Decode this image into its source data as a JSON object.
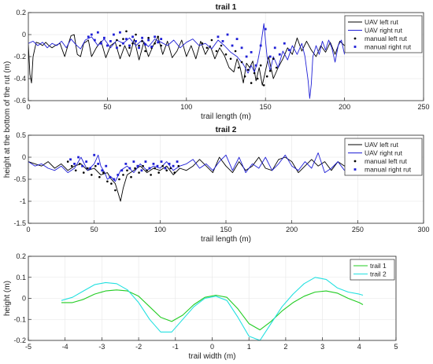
{
  "shared_ylabel": "height at the bottom of the rut (m)",
  "chart_data": [
    {
      "type": "line",
      "title": "trail 1",
      "xlabel": "trail length (m)",
      "ylabel": "",
      "xlim": [
        0,
        250
      ],
      "ylim": [
        -0.6,
        0.2
      ],
      "xticks": [
        0,
        50,
        100,
        150,
        200,
        250
      ],
      "yticks": [
        -0.6,
        -0.4,
        -0.2,
        0,
        0.2
      ],
      "xtick_labels": [
        "0",
        "50",
        "100",
        "150",
        "200",
        "250"
      ],
      "ytick_labels": [
        "-0.6",
        "-0.4",
        "-0.2",
        "0",
        "0.2"
      ],
      "grid": true,
      "legend_position": "top-right",
      "series": [
        {
          "name": "UAV left rut",
          "kind": "line",
          "color": "#000000",
          "x": [
            0,
            1,
            2,
            3,
            5,
            7,
            9,
            11,
            13,
            15,
            17,
            20,
            23,
            25,
            27,
            29,
            31,
            33,
            35,
            38,
            40,
            43,
            46,
            49,
            52,
            55,
            58,
            61,
            64,
            67,
            70,
            73,
            76,
            79,
            82,
            85,
            88,
            91,
            94,
            97,
            100,
            103,
            106,
            109,
            112,
            115,
            118,
            121,
            124,
            127,
            130,
            132,
            134,
            136,
            138,
            140,
            142,
            144,
            146,
            148,
            150,
            152,
            155,
            158,
            161,
            164,
            167,
            170,
            173,
            176,
            179,
            182,
            185,
            188,
            191,
            194,
            197,
            200
          ],
          "y": [
            -0.09,
            -0.36,
            -0.44,
            -0.2,
            -0.07,
            -0.08,
            -0.1,
            -0.07,
            -0.1,
            -0.12,
            -0.1,
            -0.08,
            -0.2,
            -0.1,
            -0.01,
            0.0,
            -0.18,
            -0.2,
            -0.08,
            -0.05,
            -0.2,
            -0.12,
            -0.06,
            -0.21,
            -0.1,
            -0.07,
            -0.22,
            -0.1,
            -0.2,
            -0.04,
            -0.23,
            -0.07,
            -0.2,
            -0.1,
            -0.02,
            -0.18,
            -0.06,
            -0.21,
            -0.15,
            -0.05,
            -0.2,
            -0.1,
            -0.22,
            -0.06,
            -0.18,
            -0.1,
            -0.22,
            -0.12,
            -0.19,
            -0.3,
            -0.34,
            -0.22,
            -0.3,
            -0.44,
            -0.26,
            -0.3,
            -0.24,
            -0.42,
            -0.3,
            -0.46,
            -0.33,
            -0.2,
            -0.4,
            -0.3,
            -0.22,
            -0.12,
            -0.18,
            -0.03,
            -0.15,
            -0.06,
            -0.14,
            -0.2,
            -0.1,
            -0.16,
            -0.07,
            -0.18,
            -0.06,
            -0.1
          ]
        },
        {
          "name": "UAV right rut",
          "kind": "line",
          "color": "#1f1fd6",
          "x": [
            0,
            3,
            6,
            9,
            12,
            15,
            18,
            21,
            24,
            27,
            30,
            33,
            36,
            40,
            44,
            48,
            52,
            56,
            60,
            64,
            68,
            72,
            76,
            80,
            84,
            88,
            92,
            96,
            100,
            104,
            108,
            112,
            116,
            120,
            124,
            128,
            132,
            136,
            139,
            141,
            143,
            145,
            147,
            149,
            151,
            153,
            155,
            158,
            161,
            164,
            167,
            170,
            173,
            175,
            177,
            178,
            179,
            180,
            182,
            184,
            186,
            188,
            190,
            192,
            194,
            196,
            198,
            200
          ],
          "y": [
            -0.08,
            -0.06,
            -0.1,
            -0.07,
            -0.12,
            -0.08,
            -0.1,
            -0.06,
            -0.12,
            -0.04,
            -0.09,
            -0.13,
            -0.05,
            -0.02,
            -0.1,
            -0.04,
            -0.12,
            -0.05,
            -0.08,
            -0.03,
            -0.1,
            -0.05,
            -0.11,
            -0.04,
            -0.07,
            -0.1,
            -0.05,
            -0.12,
            -0.07,
            -0.04,
            -0.1,
            -0.08,
            -0.13,
            -0.05,
            -0.1,
            -0.16,
            -0.2,
            -0.27,
            -0.35,
            -0.28,
            -0.34,
            -0.25,
            -0.1,
            0.1,
            -0.2,
            -0.33,
            -0.2,
            -0.3,
            -0.15,
            -0.23,
            -0.1,
            -0.18,
            -0.08,
            -0.2,
            -0.42,
            -0.58,
            -0.45,
            -0.2,
            -0.1,
            -0.18,
            -0.06,
            -0.14,
            -0.05,
            -0.12,
            -0.25,
            -0.1,
            -0.05,
            -0.18
          ]
        },
        {
          "name": "manual left rut",
          "kind": "scatter",
          "marker": "dot",
          "color": "#000000",
          "x": [
            56,
            58,
            60,
            62,
            64,
            66,
            68,
            70,
            72,
            74,
            76,
            78,
            80,
            82,
            84,
            110,
            113,
            116,
            119,
            122,
            125,
            128,
            131,
            133,
            135,
            137,
            139,
            141,
            143,
            145,
            147,
            149,
            151,
            153,
            155,
            157
          ],
          "y": [
            -0.05,
            -0.1,
            -0.04,
            0.03,
            -0.12,
            -0.08,
            0.0,
            -0.1,
            -0.06,
            -0.15,
            -0.03,
            -0.12,
            -0.08,
            -0.02,
            -0.1,
            -0.08,
            -0.12,
            -0.05,
            -0.15,
            -0.1,
            -0.18,
            -0.22,
            -0.15,
            -0.3,
            -0.25,
            -0.38,
            -0.32,
            -0.44,
            -0.35,
            -0.4,
            -0.28,
            -0.46,
            -0.38,
            -0.33,
            -0.22,
            -0.3
          ]
        },
        {
          "name": "manual right rut",
          "kind": "scatter",
          "marker": "square",
          "color": "#1f1fd6",
          "x": [
            38,
            40,
            42,
            44,
            46,
            48,
            50,
            52,
            54,
            56,
            58,
            60,
            62,
            64,
            66,
            68,
            70,
            72,
            74,
            76,
            78,
            80,
            82,
            84,
            120,
            123,
            126,
            129,
            132,
            135,
            138,
            141,
            144,
            147,
            150,
            153,
            156,
            159,
            162,
            165
          ],
          "y": [
            -0.02,
            0.0,
            -0.05,
            0.02,
            -0.08,
            -0.03,
            -0.1,
            -0.06,
            0.0,
            -0.12,
            0.02,
            -0.08,
            -0.04,
            -0.1,
            -0.02,
            -0.06,
            -0.12,
            -0.03,
            -0.09,
            -0.05,
            -0.11,
            -0.02,
            -0.07,
            -0.04,
            -0.02,
            -0.06,
            0.0,
            -0.1,
            -0.04,
            -0.12,
            -0.2,
            -0.16,
            -0.28,
            -0.1,
            0.05,
            -0.2,
            -0.12,
            -0.18,
            -0.08,
            -0.14
          ]
        }
      ]
    },
    {
      "type": "line",
      "title": "trail 2",
      "xlabel": "trail length (m)",
      "ylabel": "",
      "xlim": [
        0,
        300
      ],
      "ylim": [
        -1.5,
        0.5
      ],
      "xticks": [
        0,
        50,
        100,
        150,
        200,
        250,
        300
      ],
      "yticks": [
        -1.5,
        -1,
        -0.5,
        0,
        0.5
      ],
      "xtick_labels": [
        "0",
        "50",
        "100",
        "150",
        "200",
        "250",
        "300"
      ],
      "ytick_labels": [
        "-1.5",
        "-1",
        "-0.5",
        "0",
        "0.5"
      ],
      "grid": true,
      "legend_position": "top-right",
      "series": [
        {
          "name": "UAV left rut",
          "kind": "line",
          "color": "#000000",
          "x": [
            0,
            5,
            10,
            15,
            20,
            25,
            30,
            35,
            40,
            45,
            50,
            55,
            60,
            63,
            66,
            68,
            70,
            72,
            75,
            80,
            85,
            90,
            95,
            100,
            105,
            110,
            115,
            120,
            125,
            130,
            135,
            140,
            145,
            150,
            155,
            160,
            165,
            170,
            175,
            180,
            185,
            190,
            195,
            200,
            205,
            210,
            215,
            220,
            225,
            230,
            235,
            240,
            244
          ],
          "y": [
            -0.1,
            -0.15,
            -0.2,
            -0.1,
            -0.25,
            -0.15,
            -0.3,
            -0.2,
            -0.15,
            -0.3,
            -0.25,
            -0.4,
            -0.35,
            -0.5,
            -0.6,
            -0.8,
            -1.0,
            -0.7,
            -0.4,
            -0.3,
            -0.2,
            -0.35,
            -0.25,
            -0.3,
            -0.2,
            -0.4,
            -0.25,
            -0.3,
            -0.2,
            -0.05,
            -0.2,
            -0.35,
            0.0,
            -0.2,
            -0.35,
            -0.1,
            -0.3,
            -0.2,
            0.0,
            -0.25,
            -0.3,
            -0.05,
            0.0,
            -0.1,
            -0.35,
            -0.2,
            -0.05,
            -0.2,
            -0.1,
            -0.3,
            -0.1,
            -0.2,
            -0.1
          ]
        },
        {
          "name": "UAV right rut",
          "kind": "line",
          "color": "#1f1fd6",
          "x": [
            0,
            5,
            10,
            15,
            20,
            25,
            30,
            35,
            40,
            45,
            50,
            53,
            55,
            58,
            60,
            63,
            66,
            70,
            75,
            80,
            85,
            90,
            95,
            100,
            105,
            110,
            115,
            120,
            125,
            130,
            135,
            140,
            145,
            150,
            155,
            160,
            165,
            170,
            175,
            180,
            185,
            190,
            195,
            200,
            205,
            210,
            215,
            220,
            225,
            230,
            235,
            240
          ],
          "y": [
            -0.1,
            -0.2,
            -0.15,
            -0.25,
            -0.3,
            -0.2,
            -0.35,
            -0.25,
            0.0,
            -0.3,
            -0.15,
            0.05,
            -0.2,
            -0.35,
            -0.5,
            -0.45,
            -0.55,
            -0.3,
            -0.2,
            -0.35,
            -0.15,
            -0.3,
            -0.2,
            -0.25,
            -0.1,
            -0.3,
            -0.2,
            -0.15,
            -0.05,
            -0.25,
            -0.15,
            -0.3,
            -0.1,
            0.05,
            -0.3,
            0.0,
            -0.35,
            -0.15,
            -0.25,
            0.0,
            -0.3,
            -0.15,
            0.05,
            -0.2,
            -0.3,
            -0.1,
            -0.25,
            0.1,
            -0.35,
            -0.25,
            -0.1,
            -0.3
          ]
        },
        {
          "name": "manual left rut",
          "kind": "scatter",
          "marker": "dot",
          "color": "#000000",
          "x": [
            30,
            33,
            36,
            39,
            42,
            45,
            48,
            51,
            54,
            57,
            60,
            63,
            66,
            69,
            72,
            75,
            78,
            81,
            84,
            87,
            90,
            93,
            96,
            99,
            102,
            105,
            108,
            111,
            114
          ],
          "y": [
            -0.1,
            -0.2,
            -0.3,
            -0.15,
            -0.35,
            -0.25,
            -0.4,
            -0.2,
            -0.45,
            -0.35,
            -0.55,
            -0.6,
            -0.75,
            -0.5,
            -0.4,
            -0.3,
            -0.45,
            -0.25,
            -0.35,
            -0.2,
            -0.3,
            -0.4,
            -0.25,
            -0.35,
            -0.2,
            -0.3,
            -0.25,
            -0.35,
            -0.2
          ]
        },
        {
          "name": "manual right rut",
          "kind": "scatter",
          "marker": "square",
          "color": "#1f1fd6",
          "x": [
            32,
            35,
            38,
            41,
            44,
            47,
            50,
            53,
            56,
            59,
            62,
            65,
            68,
            71,
            74,
            77,
            80,
            83,
            86,
            89,
            92,
            95,
            98,
            101,
            104,
            107,
            110,
            113
          ],
          "y": [
            -0.05,
            -0.15,
            0.0,
            -0.2,
            -0.1,
            -0.25,
            0.05,
            -0.15,
            -0.3,
            -0.2,
            -0.45,
            -0.5,
            -0.4,
            -0.3,
            -0.15,
            -0.25,
            -0.1,
            -0.2,
            -0.3,
            -0.1,
            -0.25,
            -0.15,
            -0.2,
            -0.1,
            -0.25,
            -0.15,
            -0.2,
            -0.1
          ]
        }
      ]
    },
    {
      "type": "line",
      "title": "",
      "xlabel": "trail width (m)",
      "ylabel": "height (m)",
      "xlim": [
        -5,
        5
      ],
      "ylim": [
        -0.2,
        0.2
      ],
      "xticks": [
        -5,
        -4,
        -3,
        -2,
        -1,
        0,
        1,
        2,
        3,
        4,
        5
      ],
      "yticks": [
        -0.2,
        -0.1,
        0,
        0.1,
        0.2
      ],
      "xtick_labels": [
        "-5",
        "-4",
        "-3",
        "-2",
        "-1",
        "0",
        "1",
        "2",
        "3",
        "4",
        "5"
      ],
      "ytick_labels": [
        "-0.2",
        "-0.1",
        "0",
        "0.1",
        "0.2"
      ],
      "grid": true,
      "legend_position": "top-right",
      "series": [
        {
          "name": "trail 1",
          "kind": "line",
          "color": "#22cc22",
          "x": [
            -4.1,
            -3.8,
            -3.5,
            -3.2,
            -2.9,
            -2.6,
            -2.3,
            -2.0,
            -1.7,
            -1.4,
            -1.1,
            -0.8,
            -0.5,
            -0.2,
            0.1,
            0.4,
            0.7,
            1.0,
            1.3,
            1.6,
            1.9,
            2.2,
            2.5,
            2.8,
            3.1,
            3.4,
            3.7,
            4.0,
            4.1
          ],
          "y": [
            -0.02,
            -0.02,
            -0.005,
            0.02,
            0.035,
            0.04,
            0.035,
            0.01,
            -0.04,
            -0.09,
            -0.11,
            -0.08,
            -0.03,
            0.005,
            0.015,
            0.005,
            -0.05,
            -0.12,
            -0.15,
            -0.11,
            -0.06,
            -0.02,
            0.01,
            0.03,
            0.035,
            0.025,
            0.0,
            -0.02,
            -0.03
          ]
        },
        {
          "name": "trail 2",
          "kind": "line",
          "color": "#22e0e0",
          "x": [
            -4.1,
            -3.8,
            -3.5,
            -3.2,
            -2.9,
            -2.6,
            -2.3,
            -2.0,
            -1.7,
            -1.4,
            -1.1,
            -0.8,
            -0.5,
            -0.2,
            0.1,
            0.4,
            0.7,
            1.0,
            1.3,
            1.6,
            1.9,
            2.2,
            2.5,
            2.8,
            3.1,
            3.4,
            3.7,
            4.0,
            4.1
          ],
          "y": [
            -0.01,
            0.005,
            0.035,
            0.065,
            0.075,
            0.07,
            0.04,
            -0.02,
            -0.1,
            -0.16,
            -0.16,
            -0.1,
            -0.04,
            0.0,
            0.01,
            -0.01,
            -0.09,
            -0.18,
            -0.2,
            -0.12,
            -0.04,
            0.02,
            0.07,
            0.1,
            0.09,
            0.05,
            0.03,
            0.02,
            0.015
          ]
        }
      ]
    }
  ]
}
